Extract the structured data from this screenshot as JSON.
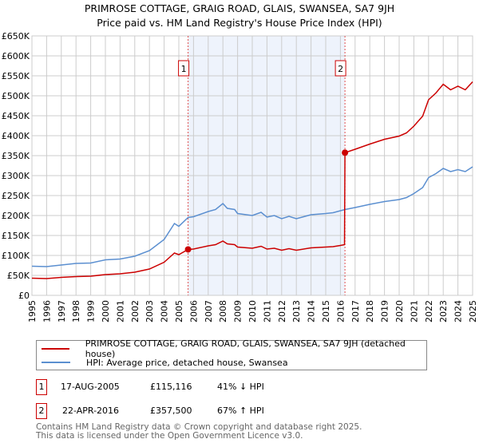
{
  "chart_data": {
    "type": "line",
    "title": "PRIMROSE COTTAGE, GRAIG ROAD, GLAIS, SWANSEA, SA7 9JH",
    "subtitle": "Price paid vs. HM Land Registry's House Price Index (HPI)",
    "xlabel": "",
    "ylabel": "",
    "xlim": [
      1995,
      2025
    ],
    "ylim": [
      0,
      650000
    ],
    "x_ticks": [
      "1995",
      "1996",
      "1997",
      "1998",
      "1999",
      "2000",
      "2001",
      "2002",
      "2003",
      "2004",
      "2005",
      "2006",
      "2007",
      "2008",
      "2009",
      "2010",
      "2011",
      "2012",
      "2013",
      "2014",
      "2015",
      "2016",
      "2017",
      "2018",
      "2019",
      "2020",
      "2021",
      "2022",
      "2023",
      "2024",
      "2025"
    ],
    "y_ticks": [
      {
        "v": 0,
        "label": "£0"
      },
      {
        "v": 50000,
        "label": "£50K"
      },
      {
        "v": 100000,
        "label": "£100K"
      },
      {
        "v": 150000,
        "label": "£150K"
      },
      {
        "v": 200000,
        "label": "£200K"
      },
      {
        "v": 250000,
        "label": "£250K"
      },
      {
        "v": 300000,
        "label": "£300K"
      },
      {
        "v": 350000,
        "label": "£350K"
      },
      {
        "v": 400000,
        "label": "£400K"
      },
      {
        "v": 450000,
        "label": "£450K"
      },
      {
        "v": 500000,
        "label": "£500K"
      },
      {
        "v": 550000,
        "label": "£550K"
      },
      {
        "v": 600000,
        "label": "£600K"
      },
      {
        "v": 650000,
        "label": "£650K"
      }
    ],
    "grid": true,
    "shaded_range": [
      2005.63,
      2016.31
    ],
    "series": [
      {
        "name": "PRIMROSE COTTAGE, GRAIG ROAD, GLAIS, SWANSEA, SA7 9JH (detached house)",
        "color": "#cc0000",
        "x": [
          1995,
          1996,
          1997,
          1998,
          1999,
          2000,
          2001,
          2002,
          2003,
          2004,
          2004.7,
          2005,
          2005.63,
          2006,
          2007,
          2007.5,
          2008,
          2008.3,
          2008.8,
          2009,
          2010,
          2010.6,
          2011,
          2011.5,
          2012,
          2012.5,
          2013,
          2014,
          2015,
          2015.5,
          2016,
          2016.28,
          2016.31,
          2017,
          2018,
          2019,
          2020,
          2020.5,
          2021,
          2021.6,
          2022,
          2022.5,
          2023,
          2023.5,
          2024,
          2024.5,
          2025
        ],
        "y": [
          43000,
          42000,
          45000,
          47000,
          48000,
          52000,
          54000,
          58000,
          66000,
          83000,
          106000,
          102000,
          115116,
          116000,
          124000,
          127000,
          136000,
          129000,
          127000,
          121000,
          118000,
          123000,
          116000,
          118000,
          113000,
          117000,
          113000,
          119000,
          121000,
          122000,
          125000,
          127000,
          357500,
          366000,
          379000,
          391000,
          399000,
          407000,
          424000,
          449000,
          490000,
          507000,
          529000,
          515000,
          524000,
          515000,
          535000
        ]
      },
      {
        "name": "HPI: Average price, detached house, Swansea",
        "color": "#5b8fd0",
        "x": [
          1995,
          1996,
          1997,
          1998,
          1999,
          2000,
          2001,
          2002,
          2003,
          2004,
          2004.7,
          2005,
          2005.63,
          2006,
          2007,
          2007.5,
          2008,
          2008.3,
          2008.8,
          2009,
          2010,
          2010.6,
          2011,
          2011.5,
          2012,
          2012.5,
          2013,
          2014,
          2015,
          2015.5,
          2016,
          2016.31,
          2017,
          2018,
          2019,
          2020,
          2020.5,
          2021,
          2021.6,
          2022,
          2022.5,
          2023,
          2023.5,
          2024,
          2024.5,
          2025
        ],
        "y": [
          73000,
          72000,
          76000,
          80000,
          81000,
          89000,
          91000,
          98000,
          112000,
          140000,
          180000,
          173000,
          195000,
          197000,
          210000,
          215000,
          230000,
          218000,
          215000,
          205000,
          200000,
          208000,
          196000,
          200000,
          192000,
          198000,
          192000,
          202000,
          205000,
          207000,
          212000,
          215000,
          220000,
          228000,
          235000,
          240000,
          245000,
          255000,
          270000,
          295000,
          305000,
          318000,
          310000,
          315000,
          310000,
          322000
        ]
      }
    ],
    "annotations": [
      {
        "label": "1",
        "x": 2005.63,
        "y": 115116
      },
      {
        "label": "2",
        "x": 2016.31,
        "y": 357500
      }
    ]
  },
  "legend": {
    "items": [
      {
        "label": "PRIMROSE COTTAGE, GRAIG ROAD, GLAIS, SWANSEA, SA7 9JH (detached house)",
        "color": "#cc0000"
      },
      {
        "label": "HPI: Average price, detached house, Swansea",
        "color": "#5b8fd0"
      }
    ]
  },
  "transactions": [
    {
      "num": "1",
      "date": "17-AUG-2005",
      "price": "£115,116",
      "hpi": "41% ↓ HPI"
    },
    {
      "num": "2",
      "date": "22-APR-2016",
      "price": "£357,500",
      "hpi": "67% ↑ HPI"
    }
  ],
  "footer": {
    "line1": "Contains HM Land Registry data © Crown copyright and database right 2025.",
    "line2": "This data is licensed under the Open Government Licence v3.0."
  }
}
